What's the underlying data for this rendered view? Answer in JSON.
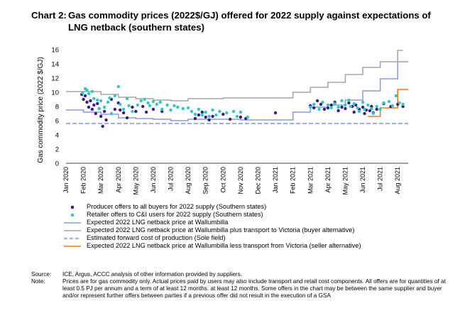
{
  "header": {
    "chart_number": "Chart 2:",
    "title": "Gas commodity prices (2022$/GJ) offered for 2022 supply against expectations of LNG netback (southern states)"
  },
  "footer": {
    "source_label": "Source:",
    "source_text": "ICE, Argus, ACCC analysis of other information provided by suppliers.",
    "note_label": "Note:",
    "note_text": "Prices are for gas commodity only. Actual prices paid by users may also include transport and retail cost components. All offers are for quantities of at least 0.5 PJ per annum and a term of at least 12 months. at least 12 months. Some offers in the chart may be between the same supplier and buyer and/or represent further offers between parties if a previous offer did not result in the execution of a GSA"
  },
  "colors": {
    "producer": "#3b1a8a",
    "retailer": "#2ec9c3",
    "wallumbilla": "#8a9ce6",
    "plus_transport": "#a6a6a6",
    "production": "#7f93e8",
    "less_transport": "#e8791a"
  },
  "chart_data": {
    "type": "scatter",
    "title": "Gas commodity prices (2022$/GJ) offered for 2022 supply against expectations of LNG netback (southern states)",
    "ylabel": "Gas commodity price (2022 $/GJ)",
    "xlabel": "",
    "ylim": [
      0,
      16
    ],
    "yticks": [
      0,
      2,
      4,
      6,
      8,
      10,
      12,
      14,
      16
    ],
    "grid": false,
    "legend_position": "bottom",
    "x_categories": [
      "Jan 2020",
      "Feb 2020",
      "Mar 2020",
      "Apr 2020",
      "May 2020",
      "Jun 2020",
      "Jul 2020",
      "Aug 2020",
      "Sep 2020",
      "Oct 2020",
      "Nov 2020",
      "Dec 2020",
      "Jan 2021",
      "Feb 2021",
      "Mar 2021",
      "Apr 2021",
      "May 2021",
      "Jun 2021",
      "Jul 2021",
      "Aug 2021"
    ],
    "series": [
      {
        "name": "Producer offers to all buyers for 2022 supply (Southern states)",
        "kind": "scatter",
        "color": "#3b1a8a",
        "points": [
          [
            0.9,
            9.7
          ],
          [
            1.0,
            9.0
          ],
          [
            1.1,
            9.5
          ],
          [
            1.2,
            8.6
          ],
          [
            1.3,
            7.9
          ],
          [
            1.4,
            8.8
          ],
          [
            1.5,
            7.6
          ],
          [
            1.6,
            8.2
          ],
          [
            1.7,
            7.0
          ],
          [
            1.8,
            8.4
          ],
          [
            1.9,
            7.7
          ],
          [
            2.0,
            6.6
          ],
          [
            2.1,
            5.2
          ],
          [
            2.2,
            7.3
          ],
          [
            2.3,
            6.1
          ],
          [
            2.6,
            9.0
          ],
          [
            2.8,
            7.6
          ],
          [
            3.0,
            8.5
          ],
          [
            3.1,
            7.5
          ],
          [
            3.3,
            7.1
          ],
          [
            3.5,
            6.4
          ],
          [
            3.8,
            7.9
          ],
          [
            4.0,
            7.3
          ],
          [
            4.4,
            8.0
          ],
          [
            4.6,
            7.2
          ],
          [
            5.0,
            7.6
          ],
          [
            5.5,
            7.3
          ],
          [
            7.4,
            6.3
          ],
          [
            7.6,
            6.8
          ],
          [
            7.8,
            7.2
          ],
          [
            8.0,
            6.5
          ],
          [
            8.2,
            6.1
          ],
          [
            8.4,
            6.6
          ],
          [
            9.0,
            6.9
          ],
          [
            9.4,
            6.2
          ],
          [
            10.0,
            6.5
          ],
          [
            10.3,
            6.3
          ],
          [
            12.0,
            7.1
          ],
          [
            14.0,
            8.1
          ],
          [
            14.2,
            7.8
          ],
          [
            14.4,
            8.8
          ],
          [
            14.6,
            8.3
          ],
          [
            14.8,
            7.6
          ],
          [
            15.0,
            7.8
          ],
          [
            15.2,
            8.2
          ],
          [
            15.4,
            8.6
          ],
          [
            15.6,
            7.4
          ],
          [
            15.8,
            7.9
          ],
          [
            16.0,
            7.7
          ],
          [
            16.2,
            8.5
          ],
          [
            16.4,
            8.0
          ],
          [
            16.5,
            7.2
          ],
          [
            16.6,
            8.2
          ],
          [
            16.8,
            7.6
          ],
          [
            17.0,
            7.9
          ],
          [
            17.1,
            7.0
          ],
          [
            17.2,
            7.5
          ],
          [
            17.4,
            7.4
          ],
          [
            17.5,
            8.0
          ],
          [
            17.6,
            7.1
          ],
          [
            17.8,
            7.6
          ],
          [
            18.2,
            8.4
          ],
          [
            18.6,
            8.0
          ],
          [
            19.0,
            8.3
          ],
          [
            19.3,
            8.0
          ]
        ]
      },
      {
        "name": "Retailer offers to C&I users for 2022 supply (Southern states)",
        "kind": "scatter",
        "color": "#2ec9c3",
        "points": [
          [
            0.95,
            9.9
          ],
          [
            1.1,
            10.5
          ],
          [
            1.2,
            10.3
          ],
          [
            1.3,
            9.8
          ],
          [
            1.5,
            10.1
          ],
          [
            1.6,
            9.1
          ],
          [
            1.8,
            8.9
          ],
          [
            1.9,
            7.7
          ],
          [
            2.0,
            8.8
          ],
          [
            2.2,
            7.9
          ],
          [
            2.4,
            8.6
          ],
          [
            2.5,
            9.2
          ],
          [
            2.6,
            7.0
          ],
          [
            2.8,
            9.5
          ],
          [
            3.0,
            10.8
          ],
          [
            3.1,
            8.3
          ],
          [
            3.3,
            7.6
          ],
          [
            3.5,
            9.1
          ],
          [
            3.6,
            8.1
          ],
          [
            3.8,
            7.3
          ],
          [
            4.1,
            8.2
          ],
          [
            4.3,
            8.8
          ],
          [
            4.5,
            9.0
          ],
          [
            4.7,
            8.5
          ],
          [
            4.8,
            8.1
          ],
          [
            5.0,
            8.7
          ],
          [
            5.2,
            8.3
          ],
          [
            5.4,
            8.6
          ],
          [
            5.5,
            7.6
          ],
          [
            5.8,
            8.2
          ],
          [
            6.0,
            7.5
          ],
          [
            6.2,
            8.1
          ],
          [
            6.4,
            7.9
          ],
          [
            6.7,
            7.7
          ],
          [
            7.0,
            7.8
          ],
          [
            7.2,
            7.3
          ],
          [
            7.4,
            6.9
          ],
          [
            7.6,
            7.6
          ],
          [
            7.8,
            6.8
          ],
          [
            8.0,
            7.2
          ],
          [
            8.2,
            6.6
          ],
          [
            8.4,
            7.5
          ],
          [
            8.6,
            6.8
          ],
          [
            8.8,
            7.3
          ],
          [
            9.2,
            7.1
          ],
          [
            9.6,
            7.3
          ],
          [
            9.8,
            6.6
          ],
          [
            10.0,
            7.2
          ],
          [
            10.4,
            6.5
          ],
          [
            14.0,
            7.9
          ],
          [
            14.2,
            8.3
          ],
          [
            14.5,
            7.6
          ],
          [
            14.7,
            8.6
          ],
          [
            15.0,
            8.2
          ],
          [
            15.2,
            7.8
          ],
          [
            15.4,
            8.4
          ],
          [
            15.6,
            7.9
          ],
          [
            15.8,
            8.8
          ],
          [
            16.0,
            8.2
          ],
          [
            16.2,
            8.9
          ],
          [
            16.3,
            8.0
          ],
          [
            16.5,
            8.4
          ],
          [
            16.7,
            7.8
          ],
          [
            16.8,
            7.3
          ],
          [
            17.0,
            8.6
          ],
          [
            17.1,
            7.6
          ],
          [
            17.3,
            8.2
          ],
          [
            17.5,
            7.7
          ],
          [
            17.6,
            7.0
          ],
          [
            17.8,
            8.0
          ],
          [
            18.0,
            7.6
          ],
          [
            18.2,
            8.5
          ],
          [
            18.5,
            8.7
          ],
          [
            18.7,
            8.1
          ],
          [
            18.9,
            9.5
          ],
          [
            19.1,
            8.5
          ],
          [
            19.3,
            8.3
          ]
        ]
      },
      {
        "name": "Expected 2022 LNG netback price at Wallumbilla",
        "kind": "step",
        "color": "#8a9ce6",
        "points": [
          [
            0.0,
            7.5
          ],
          [
            1.0,
            7.2
          ],
          [
            2.0,
            6.9
          ],
          [
            3.0,
            6.4
          ],
          [
            4.0,
            6.3
          ],
          [
            5.0,
            6.2
          ],
          [
            6.0,
            6.0
          ],
          [
            7.0,
            6.2
          ],
          [
            8.0,
            6.2
          ],
          [
            9.0,
            6.2
          ],
          [
            10.0,
            6.1
          ],
          [
            11.0,
            6.1
          ],
          [
            12.0,
            6.1
          ],
          [
            13.0,
            7.2
          ],
          [
            14.0,
            7.9
          ],
          [
            15.0,
            8.2
          ],
          [
            16.0,
            8.9
          ],
          [
            17.0,
            10.2
          ],
          [
            18.0,
            11.9
          ],
          [
            19.0,
            14.3
          ],
          [
            19.6,
            14.3
          ]
        ]
      },
      {
        "name": "Expected 2022 LNG netback price at Wallumbilla plus transport to Victoria (buyer alternative)",
        "kind": "step",
        "color": "#a6a6a6",
        "points": [
          [
            0.0,
            10.1
          ],
          [
            1.0,
            10.1
          ],
          [
            2.0,
            9.7
          ],
          [
            3.0,
            9.3
          ],
          [
            4.0,
            9.1
          ],
          [
            5.0,
            8.9
          ],
          [
            6.0,
            8.8
          ],
          [
            7.0,
            9.1
          ],
          [
            8.0,
            9.1
          ],
          [
            9.0,
            9.2
          ],
          [
            10.0,
            9.2
          ],
          [
            11.0,
            9.2
          ],
          [
            12.0,
            9.2
          ],
          [
            13.0,
            10.0
          ],
          [
            14.0,
            10.7
          ],
          [
            15.0,
            11.4
          ],
          [
            16.0,
            12.5
          ],
          [
            17.0,
            13.5
          ],
          [
            18.0,
            14.3
          ],
          [
            19.0,
            15.9
          ],
          [
            19.3,
            15.9
          ]
        ]
      },
      {
        "name": "Estimated forward cost of production (Sole field)",
        "kind": "dashed",
        "color": "#7f93e8",
        "points": [
          [
            0.0,
            5.6
          ],
          [
            19.6,
            5.6
          ]
        ]
      },
      {
        "name": "Expected 2022 LNG netback price at Wallumbilla less transport from Victoria (seller alternative)",
        "kind": "step",
        "color": "#e8791a",
        "points": [
          [
            17.3,
            6.6
          ],
          [
            17.8,
            6.6
          ],
          [
            18.0,
            7.8
          ],
          [
            18.6,
            7.8
          ],
          [
            19.0,
            10.4
          ],
          [
            19.6,
            10.4
          ]
        ]
      }
    ]
  }
}
